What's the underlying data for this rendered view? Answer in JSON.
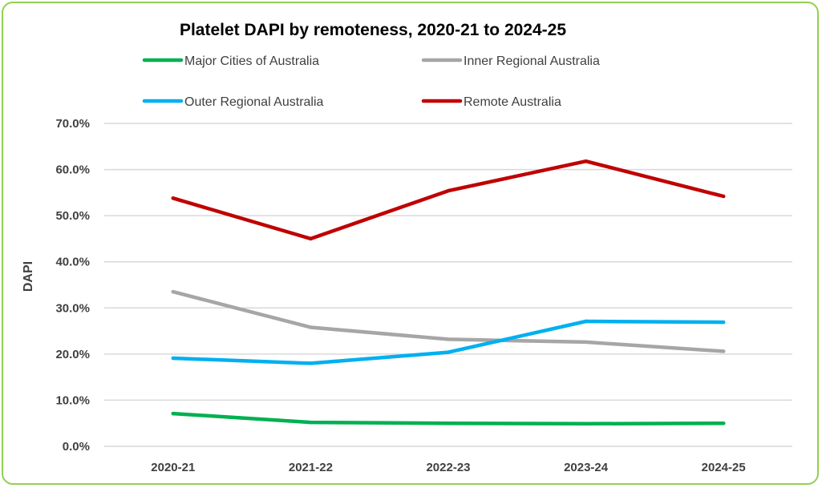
{
  "chart_data": {
    "type": "line",
    "title": "Platelet DAPI by remoteness, 2020-21 to 2024-25",
    "xlabel": "",
    "ylabel": "DAPI",
    "categories": [
      "2020-21",
      "2021-22",
      "2022-23",
      "2023-24",
      "2024-25"
    ],
    "ylim": [
      0,
      70
    ],
    "yticks": [
      0,
      10,
      20,
      30,
      40,
      50,
      60,
      70
    ],
    "ytick_labels": [
      "0.0%",
      "10.0%",
      "20.0%",
      "30.0%",
      "40.0%",
      "50.0%",
      "60.0%",
      "70.0%"
    ],
    "grid": true,
    "legend_position": "top",
    "series": [
      {
        "name": "Major Cities of Australia",
        "color": "#00b050",
        "values": [
          7.1,
          5.2,
          5.0,
          4.9,
          5.0
        ]
      },
      {
        "name": "Inner Regional Australia",
        "color": "#a6a6a6",
        "values": [
          33.5,
          25.8,
          23.2,
          22.6,
          20.6
        ]
      },
      {
        "name": "Outer Regional Australia",
        "color": "#00b0f0",
        "values": [
          19.1,
          18.0,
          20.4,
          27.1,
          26.9
        ]
      },
      {
        "name": "Remote Australia",
        "color": "#c00000",
        "values": [
          53.8,
          45.0,
          55.4,
          61.8,
          54.2
        ]
      }
    ]
  }
}
